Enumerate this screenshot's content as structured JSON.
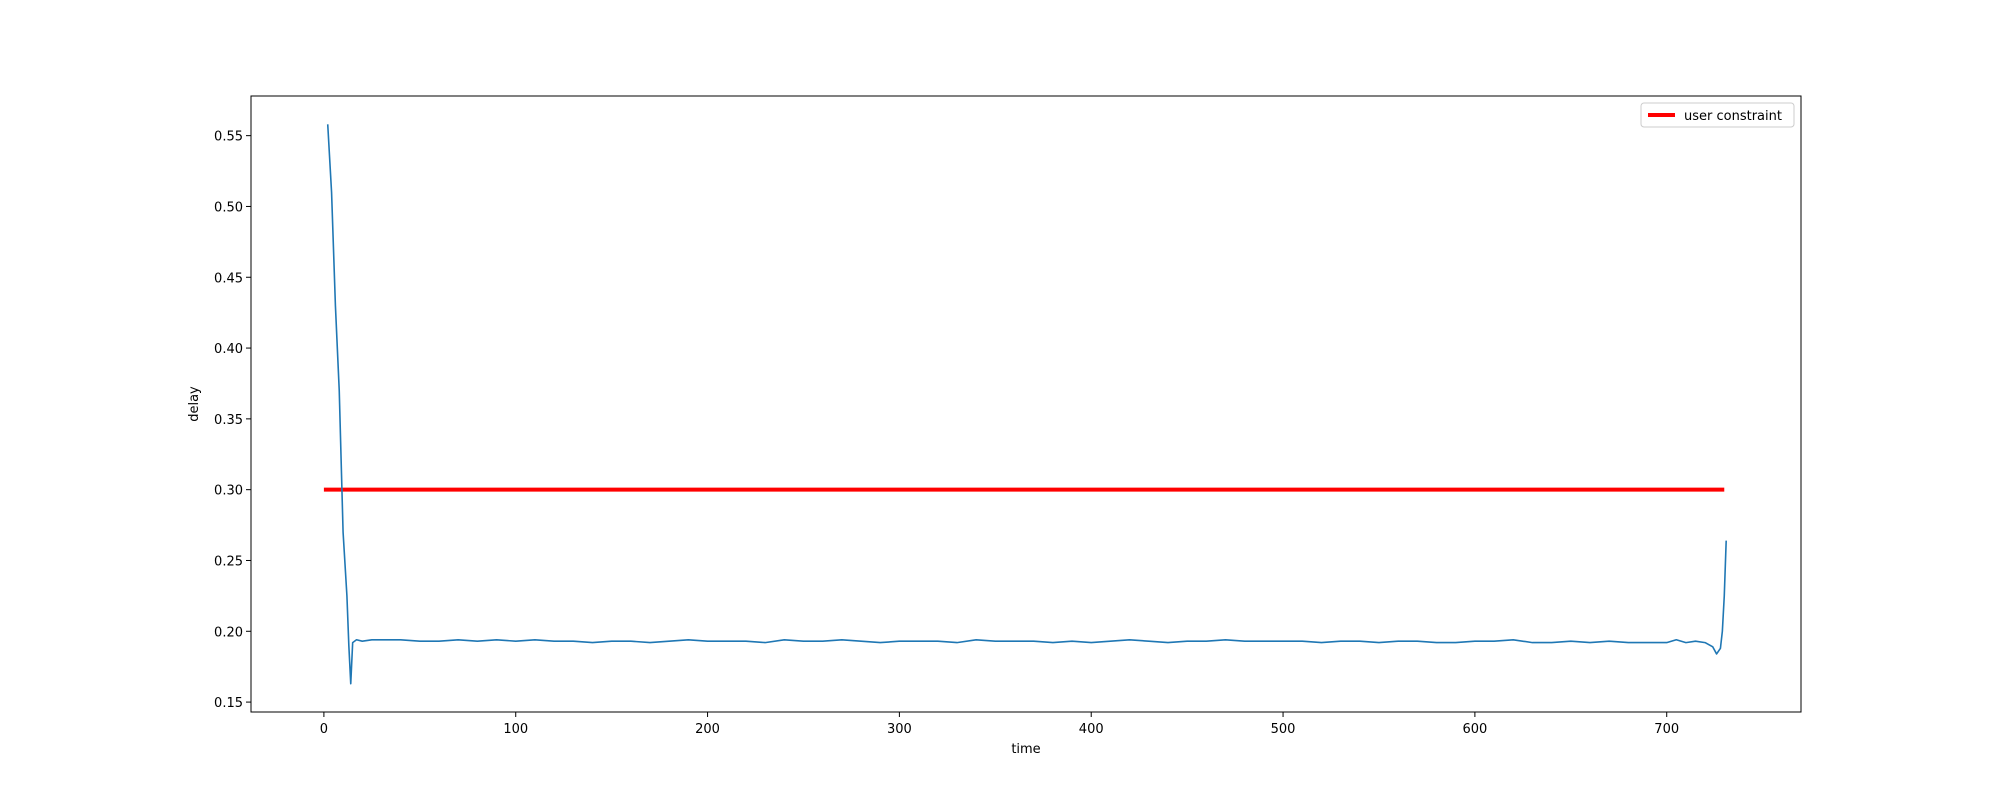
{
  "chart_data": {
    "type": "line",
    "title": "",
    "xlabel": "time",
    "ylabel": "delay",
    "xlim": [
      -38,
      770
    ],
    "ylim": [
      0.143,
      0.578
    ],
    "xticks": [
      0,
      100,
      200,
      300,
      400,
      500,
      600,
      700
    ],
    "yticks": [
      0.15,
      0.2,
      0.25,
      0.3,
      0.35,
      0.4,
      0.45,
      0.5,
      0.55
    ],
    "ytick_labels": [
      "0.15",
      "0.20",
      "0.25",
      "0.30",
      "0.35",
      "0.40",
      "0.45",
      "0.50",
      "0.55"
    ],
    "grid": false,
    "legend_position": "upper right",
    "series": [
      {
        "name": "",
        "color": "#1f77b4",
        "x": [
          2,
          4,
          6,
          8,
          10,
          12,
          13,
          14,
          15,
          17,
          20,
          25,
          30,
          40,
          50,
          60,
          70,
          80,
          90,
          100,
          110,
          120,
          130,
          140,
          150,
          160,
          170,
          180,
          190,
          200,
          210,
          220,
          230,
          240,
          250,
          260,
          270,
          280,
          290,
          300,
          310,
          320,
          330,
          340,
          350,
          360,
          370,
          380,
          390,
          400,
          410,
          420,
          430,
          440,
          450,
          460,
          470,
          480,
          490,
          500,
          510,
          520,
          530,
          540,
          550,
          560,
          570,
          580,
          590,
          600,
          610,
          620,
          630,
          640,
          650,
          660,
          670,
          680,
          690,
          700,
          705,
          710,
          715,
          720,
          724,
          726,
          728,
          729,
          730,
          731
        ],
        "y": [
          0.558,
          0.51,
          0.43,
          0.37,
          0.27,
          0.225,
          0.19,
          0.163,
          0.192,
          0.194,
          0.193,
          0.194,
          0.194,
          0.194,
          0.193,
          0.193,
          0.194,
          0.193,
          0.194,
          0.193,
          0.194,
          0.193,
          0.193,
          0.192,
          0.193,
          0.193,
          0.192,
          0.193,
          0.194,
          0.193,
          0.193,
          0.193,
          0.192,
          0.194,
          0.193,
          0.193,
          0.194,
          0.193,
          0.192,
          0.193,
          0.193,
          0.193,
          0.192,
          0.194,
          0.193,
          0.193,
          0.193,
          0.192,
          0.193,
          0.192,
          0.193,
          0.194,
          0.193,
          0.192,
          0.193,
          0.193,
          0.194,
          0.193,
          0.193,
          0.193,
          0.193,
          0.192,
          0.193,
          0.193,
          0.192,
          0.193,
          0.193,
          0.192,
          0.192,
          0.193,
          0.193,
          0.194,
          0.192,
          0.192,
          0.193,
          0.192,
          0.193,
          0.192,
          0.192,
          0.192,
          0.194,
          0.192,
          0.193,
          0.192,
          0.189,
          0.184,
          0.188,
          0.2,
          0.225,
          0.264
        ]
      },
      {
        "name": "user constraint",
        "color": "#ff0000",
        "x": [
          0,
          730
        ],
        "y": [
          0.3,
          0.3
        ]
      }
    ]
  }
}
